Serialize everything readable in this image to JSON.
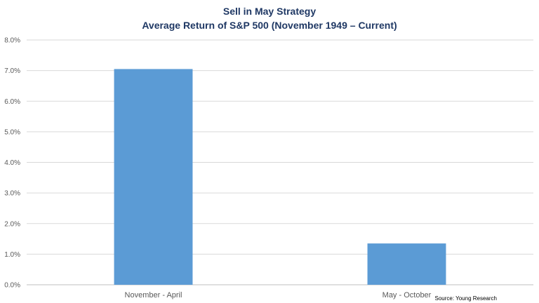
{
  "chart_data": {
    "type": "bar",
    "title_line1": "Sell in May Strategy",
    "title_line2": "Average Return of S&P 500 (November 1949 – Current)",
    "categories": [
      "November - April",
      "May - October"
    ],
    "values": [
      7.05,
      1.35
    ],
    "ylim": [
      0,
      8
    ],
    "yticks": [
      "0.0%",
      "1.0%",
      "2.0%",
      "3.0%",
      "4.0%",
      "5.0%",
      "6.0%",
      "7.0%",
      "8.0%"
    ],
    "grid": true,
    "bar_color": "#5b9bd5",
    "grid_color": "#d9d9d9",
    "source": "Source: Young Research"
  }
}
